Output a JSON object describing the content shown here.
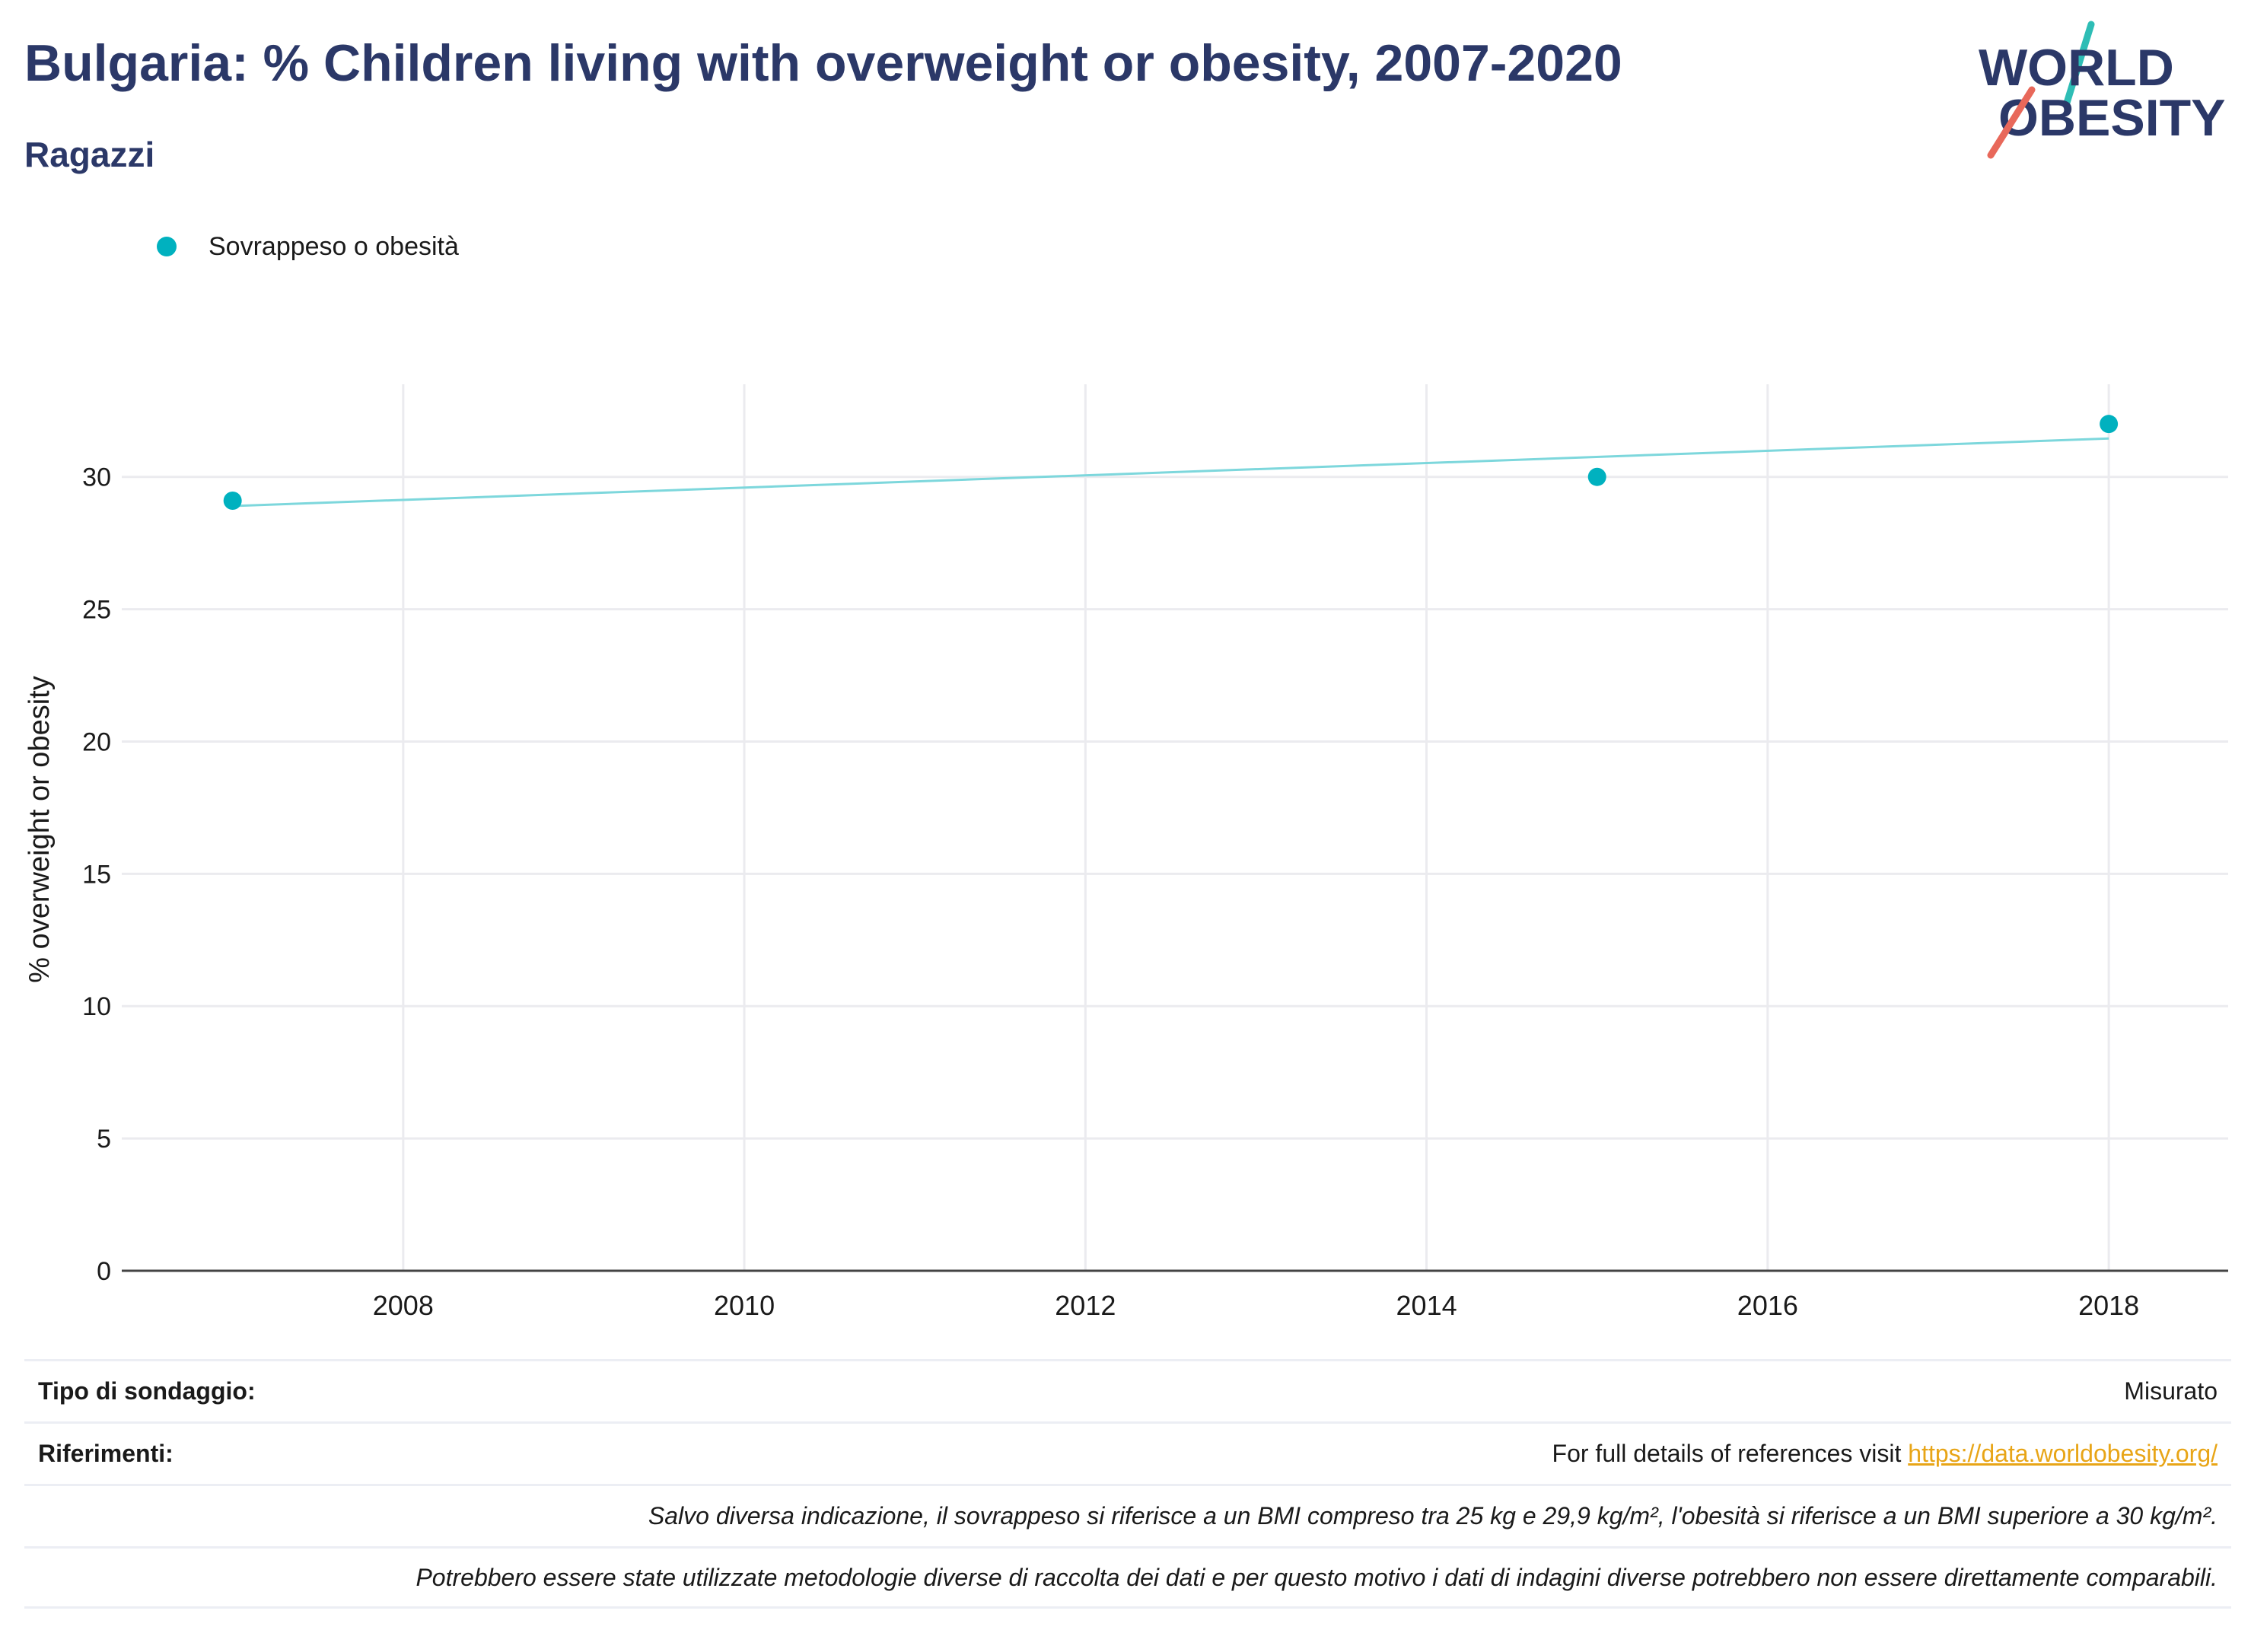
{
  "header": {
    "title": "Bulgaria: % Children living with overweight or obesity, 2007-2020",
    "subtitle": "Ragazzi"
  },
  "logo": {
    "line1": "WORLD",
    "line2": "OBESITY"
  },
  "colors": {
    "title": "#2b3868",
    "series": "#00b1bf",
    "trend": "#7dd7dc",
    "grid": "#ebebef",
    "link": "#e8a517",
    "logo_teal": "#2ebdb5",
    "logo_red": "#e8685a"
  },
  "chart_data": {
    "type": "scatter",
    "title": "Bulgaria: % Children living with overweight or obesity, 2007-2020",
    "subtitle": "Ragazzi",
    "ylabel": "% overweight or obesity",
    "xlabel": "",
    "x_ticks": [
      2008,
      2010,
      2012,
      2014,
      2016,
      2018
    ],
    "y_ticks": [
      0,
      5,
      10,
      15,
      20,
      25,
      30
    ],
    "xlim": [
      2006.35,
      2018.7
    ],
    "ylim": [
      0,
      33.5
    ],
    "grid": true,
    "legend_position": "top-left",
    "series": [
      {
        "name": "Sovrappeso o obesità",
        "x": [
          2007,
          2015,
          2018
        ],
        "y": [
          29.1,
          30.0,
          32.0
        ]
      }
    ],
    "trendline": {
      "x": [
        2007,
        2018
      ],
      "y": [
        28.9,
        31.45
      ]
    }
  },
  "footer": {
    "survey_label": "Tipo di sondaggio:",
    "survey_value": "Misurato",
    "refs_label": "Riferimenti:",
    "refs_text": "For full details of references visit ",
    "refs_link": "https://data.worldobesity.org/",
    "note1": "Salvo diversa indicazione, il sovrappeso si riferisce a un BMI compreso tra 25 kg e 29,9 kg/m², l'obesità si riferisce a un BMI superiore a 30 kg/m².",
    "note2": "Potrebbero essere state utilizzate metodologie diverse di raccolta dei dati e per questo motivo i dati di indagini diverse potrebbero non essere direttamente comparabili."
  }
}
